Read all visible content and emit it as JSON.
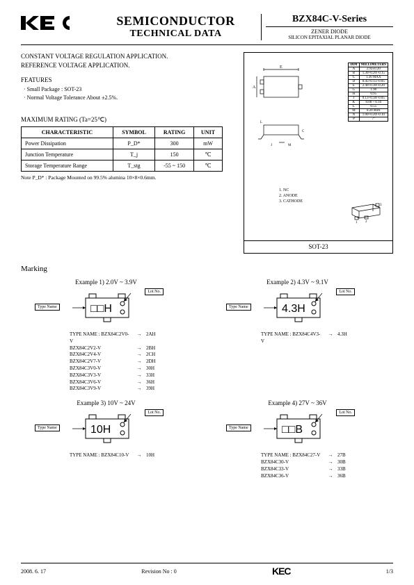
{
  "header": {
    "logo": "KEC",
    "title_line1": "SEMICONDUCTOR",
    "title_line2": "TECHNICAL DATA",
    "series": "BZX84C-V-Series",
    "subtitle1": "ZENER DIODE",
    "subtitle2": "SILICON EPITAXIAL PLANAR DIODE"
  },
  "application": {
    "line1": "CONSTANT VOLTAGE REGULATION APPLICATION.",
    "line2": "REFERENCE VOLTAGE APPLICATION."
  },
  "features": {
    "heading": "FEATURES",
    "item1": "· Small Package : SOT-23",
    "item2": "· Normal Voltage Tolerance About ±2.5%."
  },
  "maxrating": {
    "heading": "MAXIMUM RATING  (Ta=25℃)",
    "columns": [
      "CHARACTERISTIC",
      "SYMBOL",
      "RATING",
      "UNIT"
    ],
    "rows": [
      {
        "char": "Power Dissipation",
        "sym": "P_D*",
        "rating": "300",
        "unit": "mW"
      },
      {
        "char": "Junction Temperature",
        "sym": "T_j",
        "rating": "150",
        "unit": "℃"
      },
      {
        "char": "Storage Temperature Range",
        "sym": "T_stg",
        "rating": "-55 ~ 150",
        "unit": "℃"
      }
    ],
    "note": "Note P_D* : Package Mounted on 99.5% alumina 10×8×0.6mm."
  },
  "package": {
    "label": "SOT-23",
    "pins": {
      "p1": "1. NC",
      "p2": "2. ANODE",
      "p3": "3. CATHODE"
    },
    "dim_header1": "DIM",
    "dim_header2": "MILLIMETERS",
    "dims": [
      {
        "d": "A",
        "v": "2.92±0.20"
      },
      {
        "d": "B",
        "v": "1.30+0.20/-0.15"
      },
      {
        "d": "C",
        "v": "1.30 MAX"
      },
      {
        "d": "D",
        "v": "0.45+0.15/-0.05"
      },
      {
        "d": "E",
        "v": "2.40+0.30/-0.20"
      },
      {
        "d": "G",
        "v": "1.90"
      },
      {
        "d": "H",
        "v": "0.95"
      },
      {
        "d": "J",
        "v": "0.13+0.18/-0.05"
      },
      {
        "d": "K",
        "v": "0.00 ~ 0.10"
      },
      {
        "d": "L",
        "v": "0.55"
      },
      {
        "d": "M",
        "v": "0.20 MIN"
      },
      {
        "d": "N",
        "v": "1.00+0.20/-0.10"
      },
      {
        "d": "P",
        "v": "7°"
      }
    ]
  },
  "marking": {
    "heading": "Marking",
    "type_name_label": "Type Name",
    "lot_label": "Lot No.",
    "tn_prefix": "TYPE NAME :",
    "examples": [
      {
        "title": "Example  1) 2.0V ~ 3.9V",
        "chip_text": "□□H",
        "list": [
          {
            "name": "BZX84C2V0-V",
            "code": "2AH"
          },
          {
            "name": "BZX84C2V2-V",
            "code": "2BH"
          },
          {
            "name": "BZX84C2V4-V",
            "code": "2CH"
          },
          {
            "name": "BZX84C2V7-V",
            "code": "2DH"
          },
          {
            "name": "BZX84C3V0-V",
            "code": "30H"
          },
          {
            "name": "BZX84C3V3-V",
            "code": "33H"
          },
          {
            "name": "BZX84C3V6-V",
            "code": "36H"
          },
          {
            "name": "BZX84C3V9-V",
            "code": "39H"
          }
        ]
      },
      {
        "title": "Example  2) 4.3V ~ 9.1V",
        "chip_text": "4.3H",
        "list": [
          {
            "name": "BZX84C4V3-V",
            "code": "4.3H"
          }
        ]
      },
      {
        "title": "Example  3) 10V ~ 24V",
        "chip_text": "10H",
        "list": [
          {
            "name": "BZX84C10-V",
            "code": "10H"
          }
        ]
      },
      {
        "title": "Example  4) 27V ~ 36V",
        "chip_text": "□□B",
        "list": [
          {
            "name": "BZX84C27-V",
            "code": "27B"
          },
          {
            "name": "BZX84C30-V",
            "code": "30B"
          },
          {
            "name": "BZX84C33-V",
            "code": "33B"
          },
          {
            "name": "BZX84C36-V",
            "code": "36B"
          }
        ]
      }
    ]
  },
  "footer": {
    "date": "2008. 6. 17",
    "rev": "Revision No : 0",
    "logo": "KEC",
    "page": "1/3"
  },
  "colors": {
    "text": "#000000",
    "bg": "#ffffff",
    "border": "#000000"
  }
}
